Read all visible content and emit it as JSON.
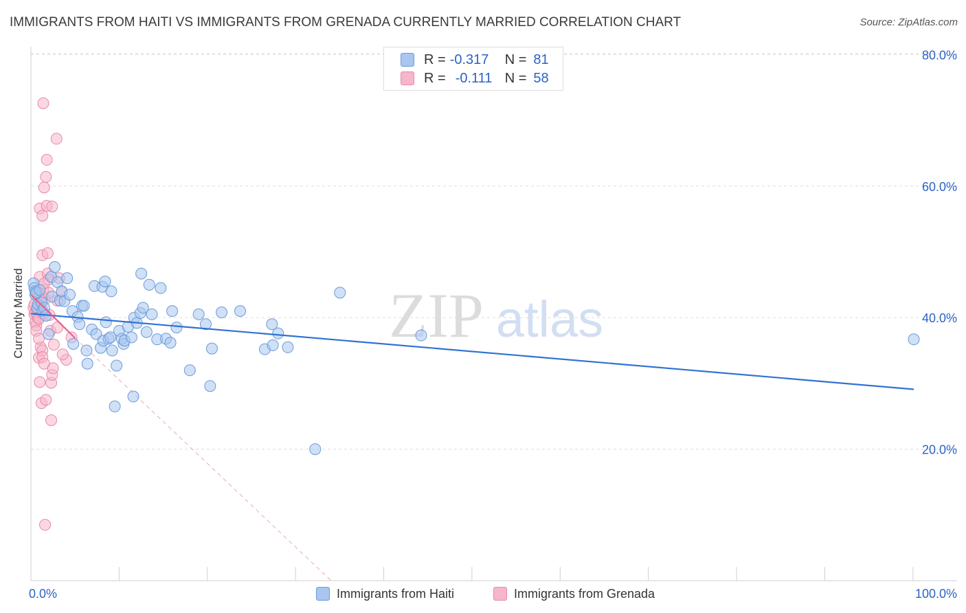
{
  "title": "IMMIGRANTS FROM HAITI VS IMMIGRANTS FROM GRENADA CURRENTLY MARRIED CORRELATION CHART",
  "source": "Source: ZipAtlas.com",
  "watermark": {
    "zip": "ZIP",
    "atlas": "atlas"
  },
  "legend": {
    "haiti": {
      "r_label": "R =",
      "r_value": "-0.317",
      "n_label": "N =",
      "n_value": "81"
    },
    "grenada": {
      "r_label": "R =",
      "r_value": "-0.111",
      "n_label": "N =",
      "n_value": "58"
    }
  },
  "series_names": {
    "haiti": "Immigrants from Haiti",
    "grenada": "Immigrants from Grenada"
  },
  "colors": {
    "haiti_fill": "#a8c6f0",
    "haiti_stroke": "#6a9ad8",
    "haiti_line": "#2f72d2",
    "grenada_fill": "#f7b6cb",
    "grenada_stroke": "#e889a8",
    "grenada_line": "#e8608c",
    "grid": "#dddddd",
    "tick_label": "#2b63c7"
  },
  "chart_data": {
    "type": "scatter",
    "title": "IMMIGRANTS FROM HAITI VS IMMIGRANTS FROM GRENADA CURRENTLY MARRIED CORRELATION CHART",
    "xlabel": "",
    "ylabel": "Currently Married",
    "xlim": [
      0,
      100
    ],
    "ylim": [
      0,
      82
    ],
    "x_tick_labels": [
      {
        "value": 0,
        "label": "0.0%"
      },
      {
        "value": 100,
        "label": "100.0%"
      }
    ],
    "y_tick_labels": [
      {
        "value": 20,
        "label": "20.0%"
      },
      {
        "value": 40,
        "label": "40.0%"
      },
      {
        "value": 60,
        "label": "60.0%"
      },
      {
        "value": 80,
        "label": "80.0%"
      }
    ],
    "series": [
      {
        "name": "Immigrants from Haiti",
        "key": "haiti",
        "points": [
          [
            0.3,
            45.2
          ],
          [
            0.4,
            44.5
          ],
          [
            0.5,
            44.0
          ],
          [
            0.5,
            43.5
          ],
          [
            0.6,
            43.8
          ],
          [
            0.7,
            41.5
          ],
          [
            0.8,
            42.0
          ],
          [
            1.0,
            44.2
          ],
          [
            1.2,
            42.3
          ],
          [
            1.3,
            41.0
          ],
          [
            1.5,
            41.5
          ],
          [
            1.7,
            40.3
          ],
          [
            2.0,
            37.5
          ],
          [
            2.3,
            46.2
          ],
          [
            2.4,
            43.2
          ],
          [
            2.7,
            47.7
          ],
          [
            3.0,
            45.4
          ],
          [
            3.3,
            42.6
          ],
          [
            3.5,
            44.0
          ],
          [
            3.8,
            42.5
          ],
          [
            4.1,
            46.0
          ],
          [
            4.4,
            43.5
          ],
          [
            4.7,
            41.0
          ],
          [
            4.8,
            36.0
          ],
          [
            5.3,
            40.1
          ],
          [
            5.5,
            39.0
          ],
          [
            5.8,
            41.8
          ],
          [
            6.0,
            41.8
          ],
          [
            6.3,
            35.0
          ],
          [
            6.4,
            33.0
          ],
          [
            6.9,
            38.2
          ],
          [
            7.2,
            44.8
          ],
          [
            7.4,
            37.5
          ],
          [
            7.9,
            35.4
          ],
          [
            8.1,
            44.7
          ],
          [
            8.2,
            36.5
          ],
          [
            8.5,
            39.3
          ],
          [
            8.4,
            45.5
          ],
          [
            8.8,
            36.8
          ],
          [
            9.0,
            37.0
          ],
          [
            9.1,
            44.0
          ],
          [
            9.2,
            35.0
          ],
          [
            9.5,
            26.5
          ],
          [
            9.7,
            32.7
          ],
          [
            10.0,
            38.0
          ],
          [
            10.3,
            36.8
          ],
          [
            10.5,
            36.0
          ],
          [
            10.6,
            36.5
          ],
          [
            11.0,
            38.6
          ],
          [
            11.4,
            37.0
          ],
          [
            11.6,
            28.0
          ],
          [
            11.7,
            40.0
          ],
          [
            12.0,
            39.2
          ],
          [
            12.5,
            46.7
          ],
          [
            12.4,
            40.7
          ],
          [
            12.7,
            41.5
          ],
          [
            13.1,
            37.8
          ],
          [
            13.4,
            45.0
          ],
          [
            13.7,
            40.5
          ],
          [
            14.3,
            36.7
          ],
          [
            14.7,
            44.5
          ],
          [
            15.3,
            36.8
          ],
          [
            15.8,
            36.2
          ],
          [
            16.0,
            41.0
          ],
          [
            16.5,
            38.5
          ],
          [
            18.0,
            32.0
          ],
          [
            19.0,
            40.5
          ],
          [
            19.8,
            39.0
          ],
          [
            20.3,
            29.6
          ],
          [
            20.5,
            35.3
          ],
          [
            21.6,
            40.8
          ],
          [
            23.7,
            41.0
          ],
          [
            26.5,
            35.2
          ],
          [
            27.3,
            39.0
          ],
          [
            27.4,
            35.8
          ],
          [
            28.0,
            37.6
          ],
          [
            29.1,
            35.5
          ],
          [
            32.2,
            20.0
          ],
          [
            35.0,
            43.8
          ],
          [
            44.2,
            37.3
          ],
          [
            100.0,
            36.7
          ]
        ],
        "trend": {
          "x": [
            0,
            100
          ],
          "y": [
            40.6,
            29.1
          ]
        }
      },
      {
        "name": "Immigrants from Grenada",
        "key": "grenada",
        "points": [
          [
            0.3,
            41.5
          ],
          [
            0.4,
            40.5
          ],
          [
            0.4,
            42.0
          ],
          [
            0.5,
            40.8
          ],
          [
            0.5,
            39.3
          ],
          [
            0.6,
            38.8
          ],
          [
            0.6,
            38.0
          ],
          [
            0.7,
            44.0
          ],
          [
            0.7,
            41.2
          ],
          [
            0.8,
            43.1
          ],
          [
            0.8,
            40.0
          ],
          [
            0.9,
            39.8
          ],
          [
            0.9,
            33.9
          ],
          [
            1.0,
            30.2
          ],
          [
            1.0,
            56.6
          ],
          [
            1.0,
            46.2
          ],
          [
            1.1,
            43.5
          ],
          [
            1.1,
            41.7
          ],
          [
            1.1,
            35.5
          ],
          [
            1.2,
            27.0
          ],
          [
            1.2,
            42.6
          ],
          [
            1.3,
            35.0
          ],
          [
            1.3,
            55.5
          ],
          [
            1.3,
            49.5
          ],
          [
            1.3,
            34.0
          ],
          [
            1.4,
            72.6
          ],
          [
            1.4,
            44.3
          ],
          [
            1.4,
            40.6
          ],
          [
            1.5,
            59.8
          ],
          [
            1.5,
            33.0
          ],
          [
            1.6,
            8.5
          ],
          [
            1.6,
            42.8
          ],
          [
            1.7,
            61.4
          ],
          [
            1.7,
            27.5
          ],
          [
            1.8,
            64.0
          ],
          [
            1.8,
            57.0
          ],
          [
            1.9,
            49.8
          ],
          [
            1.9,
            46.7
          ],
          [
            2.0,
            45.8
          ],
          [
            2.0,
            43.8
          ],
          [
            2.1,
            40.4
          ],
          [
            2.2,
            38.0
          ],
          [
            2.3,
            30.1
          ],
          [
            2.3,
            24.4
          ],
          [
            2.4,
            31.3
          ],
          [
            2.4,
            56.9
          ],
          [
            2.5,
            32.3
          ],
          [
            2.6,
            35.9
          ],
          [
            2.9,
            67.2
          ],
          [
            3.0,
            42.6
          ],
          [
            3.2,
            46.0
          ],
          [
            3.5,
            43.9
          ],
          [
            4.0,
            33.6
          ],
          [
            4.6,
            37.0
          ],
          [
            3.0,
            38.5
          ],
          [
            3.6,
            34.4
          ],
          [
            1.5,
            45.2
          ],
          [
            0.9,
            36.8
          ]
        ],
        "trend": {
          "x": [
            0,
            5.0
          ],
          "y": [
            43.5,
            36.9
          ]
        },
        "trend_extension": {
          "x": [
            5.0,
            34.0
          ],
          "y": [
            36.9,
            0.0
          ]
        }
      }
    ]
  }
}
